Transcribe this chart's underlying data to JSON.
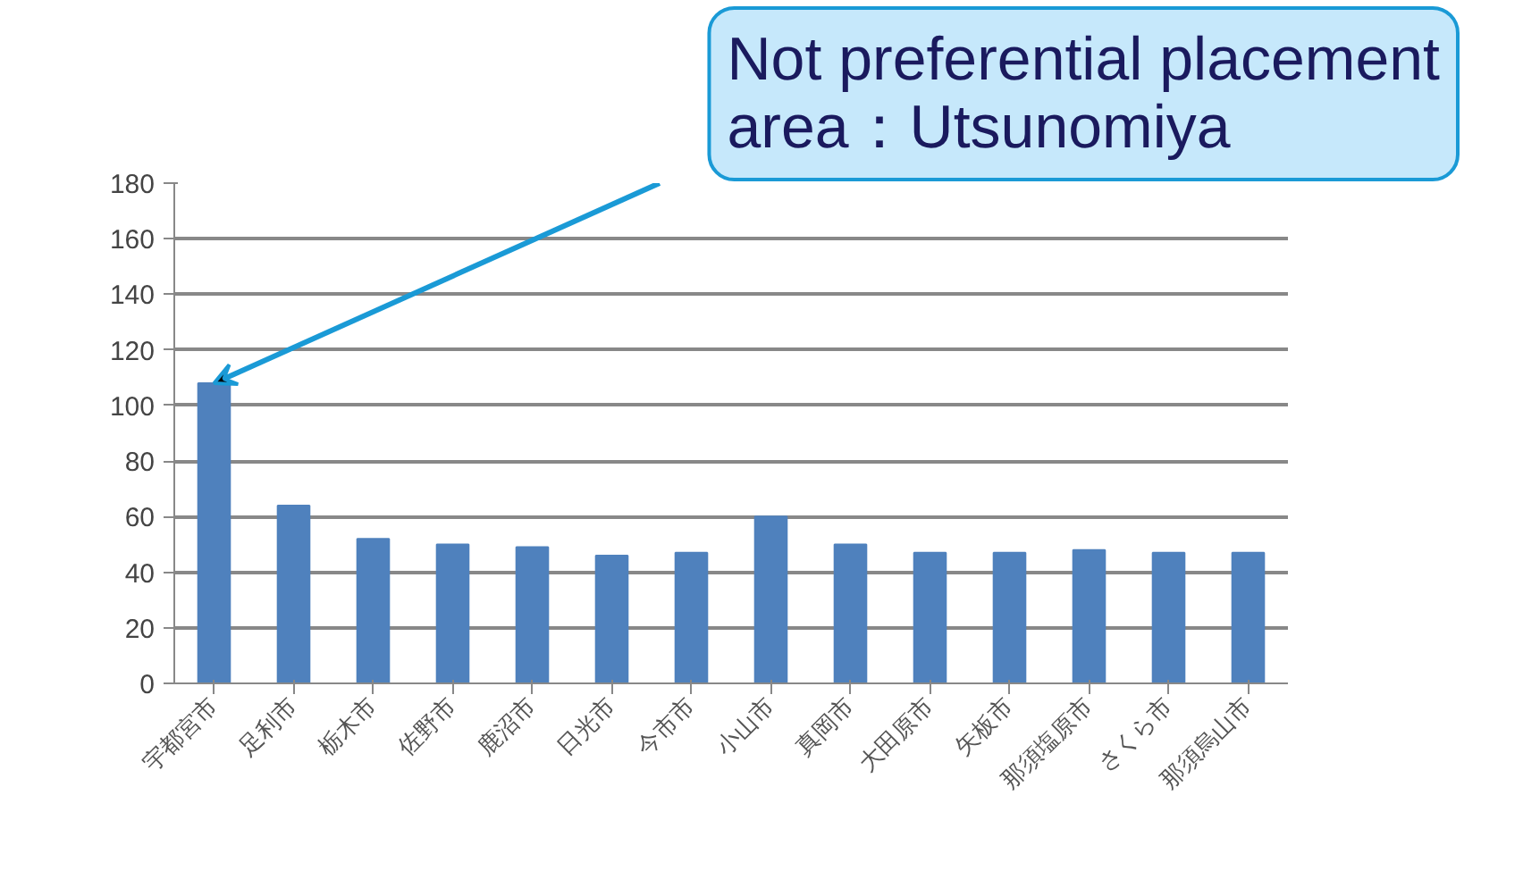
{
  "chart_data": {
    "type": "bar",
    "categories": [
      "宇都宮市",
      "足利市",
      "栃木市",
      "佐野市",
      "鹿沼市",
      "日光市",
      "今市市",
      "小山市",
      "真岡市",
      "大田原市",
      "矢板市",
      "那須塩原市",
      "さくら市",
      "那須烏山市"
    ],
    "values": [
      108,
      64,
      52,
      50,
      49,
      46,
      47,
      60,
      50,
      47,
      47,
      48,
      47,
      47
    ],
    "color": "#4f81bd",
    "ylim": [
      0,
      180
    ],
    "yticks": [
      0,
      20,
      40,
      60,
      80,
      100,
      120,
      140,
      160,
      180
    ],
    "grid": "y",
    "annotations": [
      {
        "text": "Not preferential placement\narea：Utsunomiya",
        "x": "宇都宮市",
        "y": 108
      }
    ]
  }
}
